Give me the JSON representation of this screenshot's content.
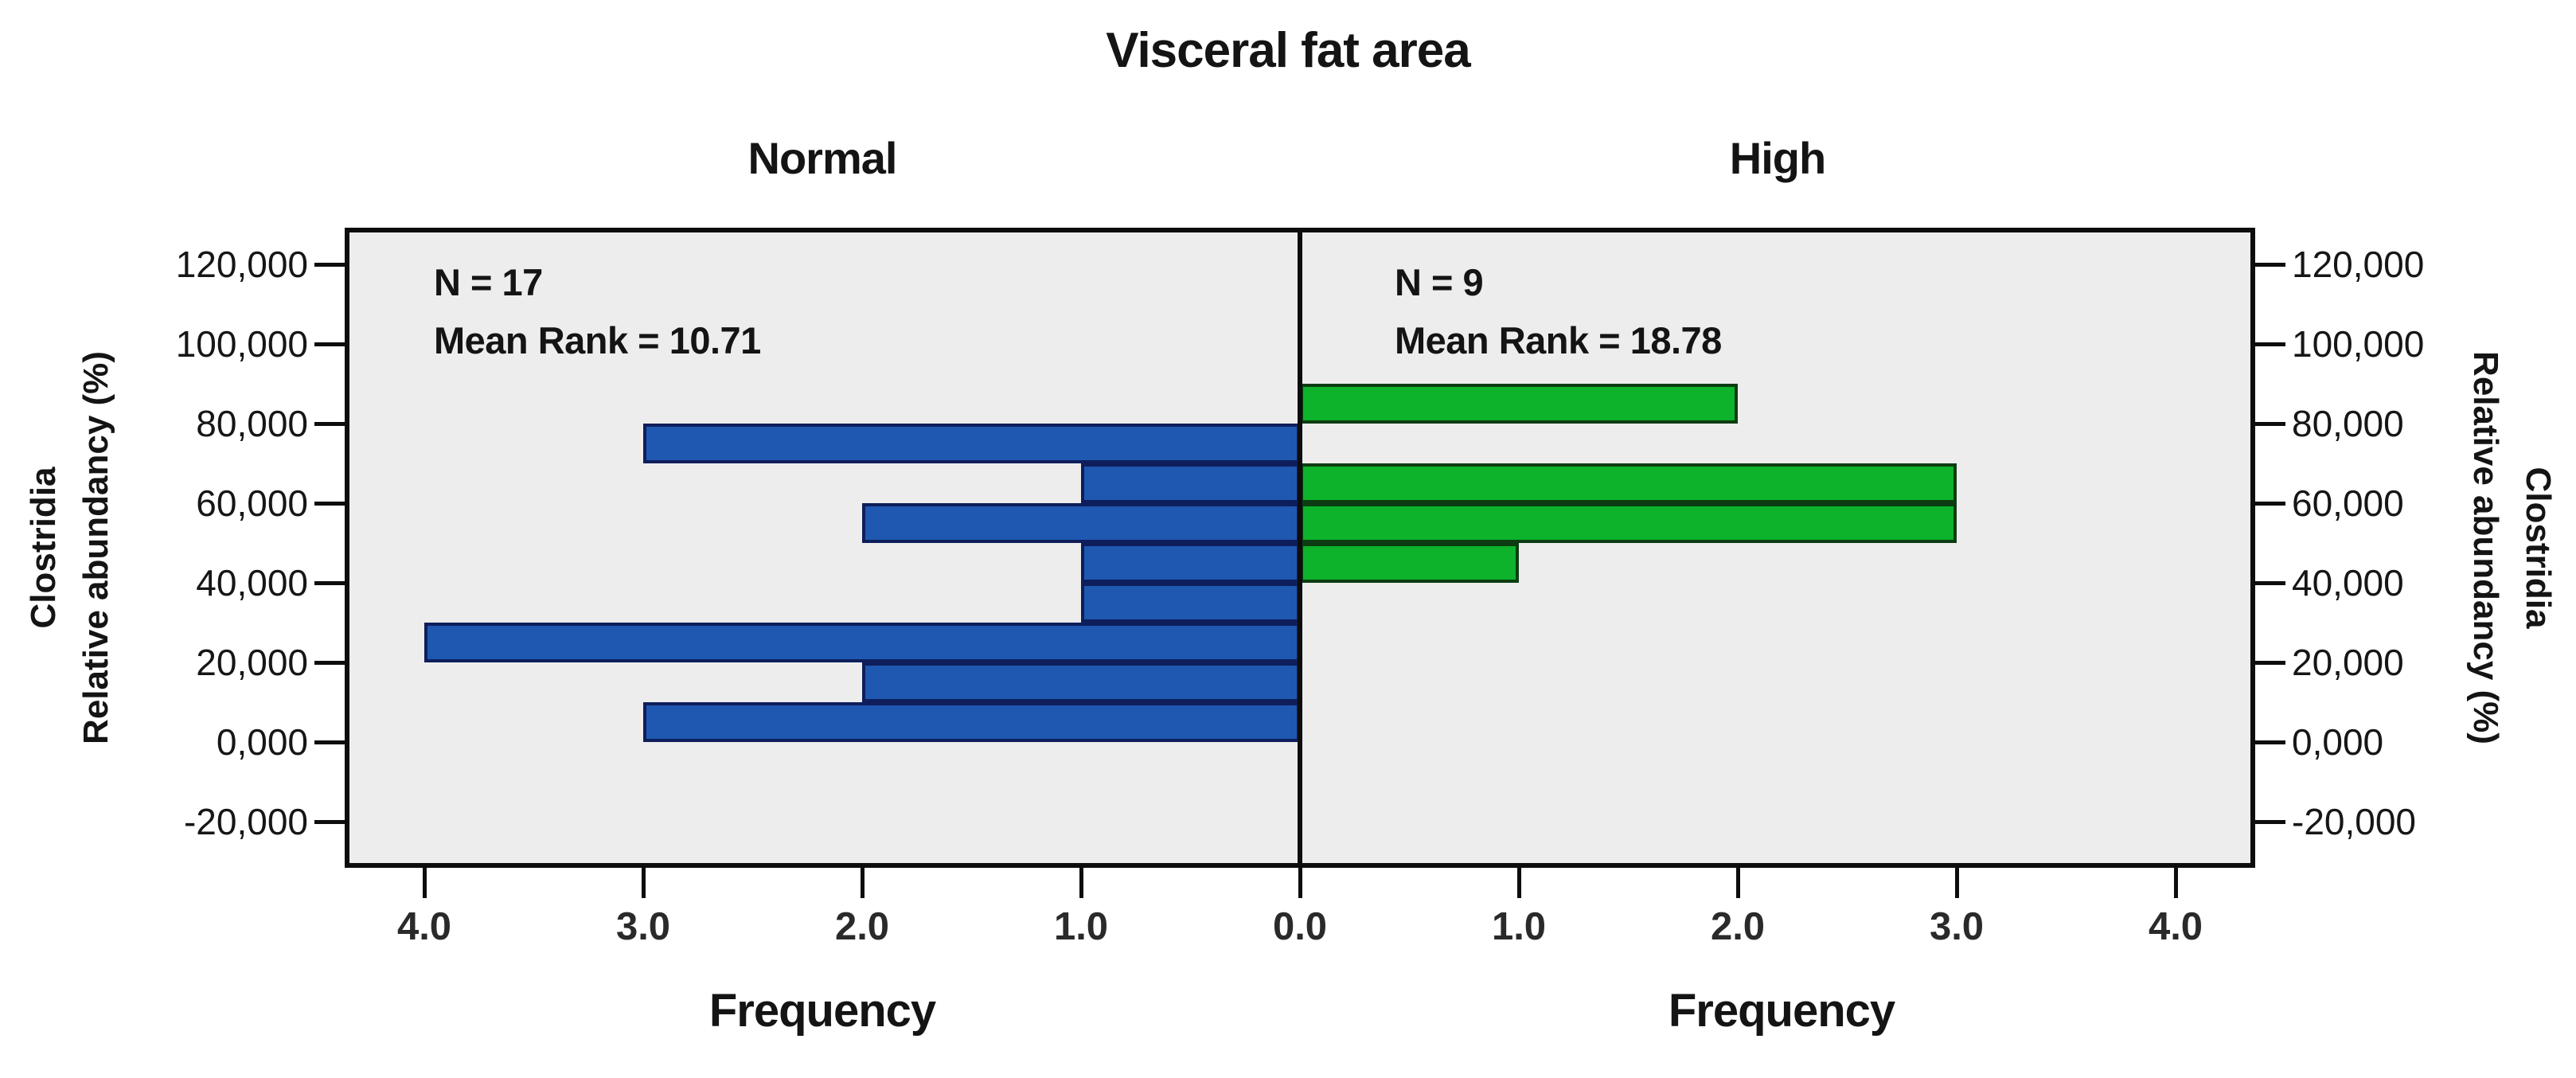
{
  "chart_data": {
    "type": "bar",
    "variant": "back-to-back-horizontal-histogram",
    "title": "Visceral fat area",
    "xlabel": "Frequency",
    "ylabel_lines": [
      "Clostridia",
      "Relative abundancy  (%)"
    ],
    "legend_position": "none",
    "grid": false,
    "plot_background": "#ededed",
    "frame_color": "#0d0d0d",
    "y_axis": {
      "tick_values": [
        120000,
        100000,
        80000,
        60000,
        40000,
        20000,
        0,
        -20000
      ],
      "tick_labels": [
        "120,000",
        "100,000",
        "80,000",
        "60,000",
        "40,000",
        "20,000",
        "0,000",
        "-20,000"
      ],
      "ylim": [
        -31500,
        129000
      ],
      "bin_width": 10000
    },
    "x_axis": {
      "label": "Frequency",
      "left_tick_values": [
        4,
        3,
        2,
        1
      ],
      "left_tick_labels": [
        "4.0",
        "3.0",
        "2.0",
        "1.0"
      ],
      "center_value": 0,
      "center_label": "0.0",
      "right_tick_values": [
        1,
        2,
        3,
        4
      ],
      "right_tick_labels": [
        "1.0",
        "2.0",
        "3.0",
        "4.0"
      ],
      "xlim_per_panel": [
        0,
        4.36
      ]
    },
    "panels": [
      {
        "group": "Normal",
        "side": "left",
        "n": 17,
        "mean_rank": 10.71,
        "n_label": "N = 17",
        "mean_rank_label": "Mean Rank = 10.71",
        "bar_color": "#1e58b0",
        "bar_border_color": "#0e1e5b",
        "bins": [
          {
            "low": 0,
            "high": 10000,
            "frequency": 3
          },
          {
            "low": 10000,
            "high": 20000,
            "frequency": 2
          },
          {
            "low": 20000,
            "high": 30000,
            "frequency": 4
          },
          {
            "low": 30000,
            "high": 40000,
            "frequency": 1
          },
          {
            "low": 40000,
            "high": 50000,
            "frequency": 1
          },
          {
            "low": 50000,
            "high": 60000,
            "frequency": 2
          },
          {
            "low": 60000,
            "high": 70000,
            "frequency": 1
          },
          {
            "low": 70000,
            "high": 80000,
            "frequency": 3
          }
        ]
      },
      {
        "group": "High",
        "side": "right",
        "n": 9,
        "mean_rank": 18.78,
        "n_label": "N = 9",
        "mean_rank_label": "Mean Rank = 18.78",
        "bar_color": "#0cb32b",
        "bar_border_color": "#0c3d12",
        "bins": [
          {
            "low": 40000,
            "high": 50000,
            "frequency": 1
          },
          {
            "low": 50000,
            "high": 60000,
            "frequency": 3
          },
          {
            "low": 60000,
            "high": 70000,
            "frequency": 3
          },
          {
            "low": 80000,
            "high": 90000,
            "frequency": 2
          }
        ]
      }
    ]
  },
  "header": {
    "title": "Visceral fat area",
    "group_left": "Normal",
    "group_right": "High"
  },
  "stats": {
    "left_n": "N = 17",
    "left_mean_rank": "Mean Rank = 10.71",
    "right_n": "N = 9",
    "right_mean_rank": "Mean Rank = 18.78"
  },
  "labels": {
    "frequency_left": "Frequency",
    "frequency_right": "Frequency",
    "y_title_line1": "Clostridia",
    "y_title_line2": "Relative abundancy  (%)"
  }
}
